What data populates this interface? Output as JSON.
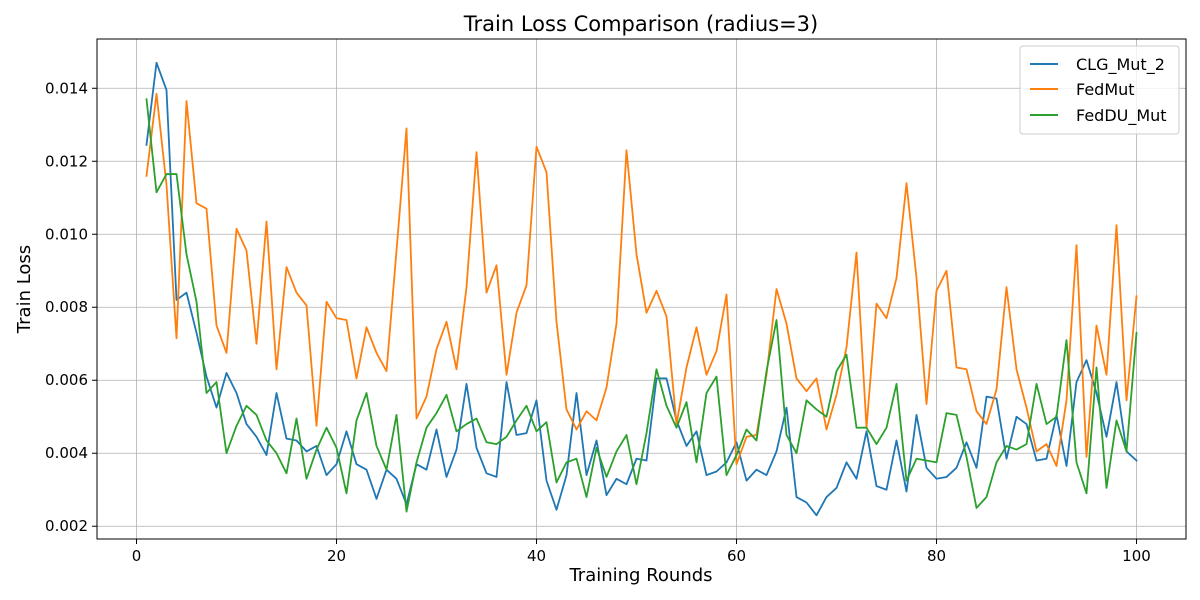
{
  "chart_data": {
    "type": "line",
    "title": "Train Loss Comparison (radius=3)",
    "xlabel": "Training Rounds",
    "ylabel": "Train Loss",
    "xlim": [
      -3.95,
      104.95
    ],
    "ylim": [
      0.00165,
      0.01535
    ],
    "xticks": [
      0,
      20,
      40,
      60,
      80,
      100
    ],
    "yticks": [
      0.002,
      0.004,
      0.006,
      0.008,
      0.01,
      0.012,
      0.014
    ],
    "xtick_labels": [
      "0",
      "20",
      "40",
      "60",
      "80",
      "100"
    ],
    "ytick_labels": [
      "0.002",
      "0.004",
      "0.006",
      "0.008",
      "0.010",
      "0.012",
      "0.014"
    ],
    "grid": true,
    "legend_position": "top-right",
    "x": [
      1,
      2,
      3,
      4,
      5,
      6,
      7,
      8,
      9,
      10,
      11,
      12,
      13,
      14,
      15,
      16,
      17,
      18,
      19,
      20,
      21,
      22,
      23,
      24,
      25,
      26,
      27,
      28,
      29,
      30,
      31,
      32,
      33,
      34,
      35,
      36,
      37,
      38,
      39,
      40,
      41,
      42,
      43,
      44,
      45,
      46,
      47,
      48,
      49,
      50,
      51,
      52,
      53,
      54,
      55,
      56,
      57,
      58,
      59,
      60,
      61,
      62,
      63,
      64,
      65,
      66,
      67,
      68,
      69,
      70,
      71,
      72,
      73,
      74,
      75,
      76,
      77,
      78,
      79,
      80,
      81,
      82,
      83,
      84,
      85,
      86,
      87,
      88,
      89,
      90,
      91,
      92,
      93,
      94,
      95,
      96,
      97,
      98,
      99,
      100
    ],
    "series": [
      {
        "name": "CLG_Mut_2",
        "color": "#1f77b4",
        "values": [
          0.01245,
          0.0147,
          0.01395,
          0.0082,
          0.0084,
          0.0073,
          0.0061,
          0.00525,
          0.0062,
          0.00565,
          0.0048,
          0.00445,
          0.00395,
          0.00565,
          0.0044,
          0.00435,
          0.00405,
          0.0042,
          0.0034,
          0.0037,
          0.0046,
          0.0037,
          0.00355,
          0.00275,
          0.00355,
          0.0033,
          0.0026,
          0.0037,
          0.00355,
          0.00465,
          0.00335,
          0.0041,
          0.0059,
          0.00415,
          0.00345,
          0.00335,
          0.00595,
          0.0045,
          0.00455,
          0.00545,
          0.00325,
          0.00245,
          0.0034,
          0.00565,
          0.0034,
          0.00435,
          0.00285,
          0.0033,
          0.00315,
          0.00385,
          0.0038,
          0.00605,
          0.00605,
          0.0049,
          0.0042,
          0.0046,
          0.0034,
          0.0035,
          0.00375,
          0.0043,
          0.00325,
          0.00355,
          0.0034,
          0.00405,
          0.00525,
          0.0028,
          0.00265,
          0.0023,
          0.0028,
          0.00305,
          0.00375,
          0.0033,
          0.0046,
          0.0031,
          0.003,
          0.00435,
          0.00295,
          0.00505,
          0.0036,
          0.0033,
          0.00335,
          0.0036,
          0.0043,
          0.0036,
          0.00555,
          0.0055,
          0.00385,
          0.005,
          0.0048,
          0.0038,
          0.00385,
          0.00505,
          0.00365,
          0.00595,
          0.00655,
          0.00565,
          0.00445,
          0.00595,
          0.00405,
          0.0038
        ]
      },
      {
        "name": "FedMut",
        "color": "#ff7f0e",
        "values": [
          0.0116,
          0.01385,
          0.01135,
          0.00715,
          0.01365,
          0.01085,
          0.0107,
          0.0075,
          0.00675,
          0.01015,
          0.00955,
          0.007,
          0.01035,
          0.0063,
          0.0091,
          0.0084,
          0.00805,
          0.00475,
          0.00815,
          0.0077,
          0.00765,
          0.00605,
          0.00745,
          0.00675,
          0.00625,
          0.00955,
          0.0129,
          0.00495,
          0.00555,
          0.00685,
          0.0076,
          0.0063,
          0.00855,
          0.01225,
          0.0084,
          0.00915,
          0.00615,
          0.00785,
          0.0086,
          0.0124,
          0.0117,
          0.0076,
          0.0052,
          0.00465,
          0.00515,
          0.0049,
          0.0058,
          0.00755,
          0.0123,
          0.00945,
          0.00785,
          0.00845,
          0.00775,
          0.0048,
          0.00635,
          0.00745,
          0.00615,
          0.0068,
          0.00835,
          0.0037,
          0.00445,
          0.0045,
          0.00615,
          0.0085,
          0.00755,
          0.00605,
          0.0057,
          0.00605,
          0.00465,
          0.0056,
          0.0069,
          0.0095,
          0.0047,
          0.0081,
          0.0077,
          0.0088,
          0.0114,
          0.0088,
          0.00535,
          0.00845,
          0.009,
          0.00635,
          0.0063,
          0.00515,
          0.0048,
          0.00575,
          0.00855,
          0.0063,
          0.00525,
          0.00405,
          0.00425,
          0.00365,
          0.00545,
          0.0097,
          0.0039,
          0.0075,
          0.00615,
          0.01025,
          0.00545,
          0.0083
        ]
      },
      {
        "name": "FedDU_Mut",
        "color": "#2ca02c",
        "values": [
          0.0137,
          0.01115,
          0.01165,
          0.01165,
          0.00945,
          0.00815,
          0.00565,
          0.00595,
          0.004,
          0.00475,
          0.0053,
          0.00505,
          0.00435,
          0.004,
          0.00345,
          0.00495,
          0.0033,
          0.0041,
          0.0047,
          0.00415,
          0.0029,
          0.0049,
          0.00565,
          0.0042,
          0.00355,
          0.00505,
          0.0024,
          0.00375,
          0.0047,
          0.0051,
          0.0056,
          0.0046,
          0.0048,
          0.00495,
          0.0043,
          0.00425,
          0.00445,
          0.0049,
          0.0053,
          0.0046,
          0.00485,
          0.0032,
          0.00375,
          0.00385,
          0.0028,
          0.00415,
          0.00335,
          0.00405,
          0.0045,
          0.00315,
          0.00455,
          0.0063,
          0.0053,
          0.0047,
          0.0054,
          0.00375,
          0.00565,
          0.0061,
          0.0034,
          0.00395,
          0.00465,
          0.00435,
          0.00625,
          0.00765,
          0.0045,
          0.004,
          0.00545,
          0.0052,
          0.005,
          0.00625,
          0.0067,
          0.0047,
          0.0047,
          0.00425,
          0.0047,
          0.0059,
          0.00325,
          0.00385,
          0.0038,
          0.00375,
          0.0051,
          0.00505,
          0.0039,
          0.0025,
          0.0028,
          0.00375,
          0.0042,
          0.0041,
          0.00425,
          0.0059,
          0.0048,
          0.005,
          0.0071,
          0.00375,
          0.0029,
          0.00635,
          0.00305,
          0.0049,
          0.00405,
          0.0073
        ]
      }
    ]
  }
}
